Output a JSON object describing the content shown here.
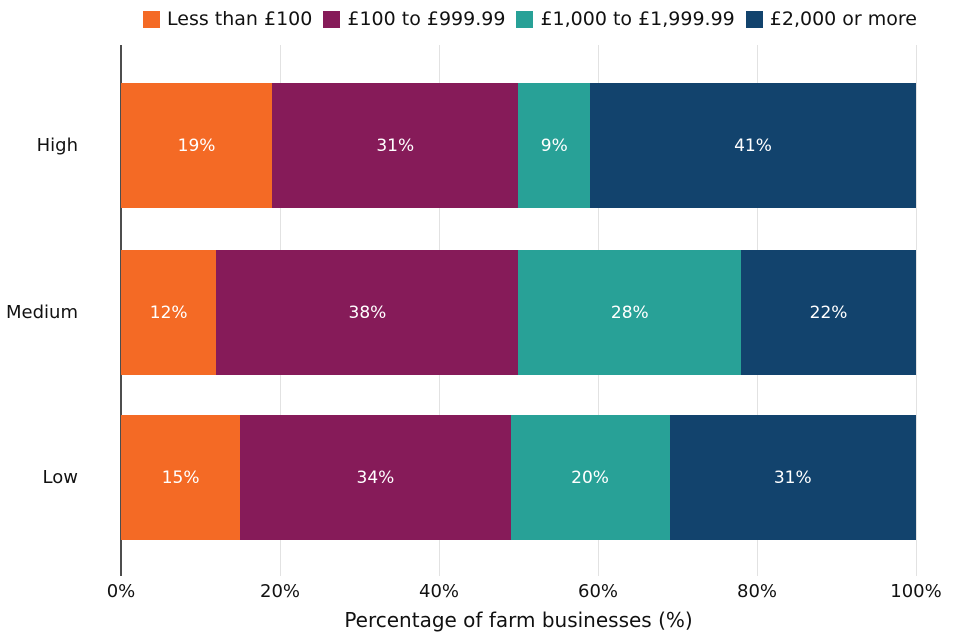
{
  "chart_data": {
    "type": "bar",
    "orientation": "horizontal",
    "stacked": true,
    "categories": [
      "High",
      "Medium",
      "Low"
    ],
    "series": [
      {
        "name": "Less than £100",
        "color": "#F46A25",
        "values": [
          19,
          12,
          15
        ]
      },
      {
        "name": "£100 to £999.99",
        "color": "#861B59",
        "values": [
          31,
          38,
          34
        ]
      },
      {
        "name": "£1,000 to £1,999.99",
        "color": "#28A197",
        "values": [
          9,
          28,
          20
        ]
      },
      {
        "name": "£2,000 or more",
        "color": "#12436D",
        "values": [
          41,
          22,
          31
        ]
      }
    ],
    "data_labels": {
      "format": "{value}%",
      "color": "#ffffff"
    },
    "xlabel": "Percentage of farm businesses (%)",
    "xlim": [
      0,
      100
    ],
    "xticks": [
      {
        "value": 0,
        "label": "0%"
      },
      {
        "value": 20,
        "label": "20%"
      },
      {
        "value": 40,
        "label": "40%"
      },
      {
        "value": 60,
        "label": "60%"
      },
      {
        "value": 80,
        "label": "80%"
      },
      {
        "value": 100,
        "label": "100%"
      }
    ],
    "grid": "vertical",
    "legend_position": "top-center",
    "styles": {
      "background": "#ffffff",
      "gridline_color": "#e2e2e2",
      "axis_spine_color": "#4d4d4d",
      "text_color": "#111111"
    }
  }
}
